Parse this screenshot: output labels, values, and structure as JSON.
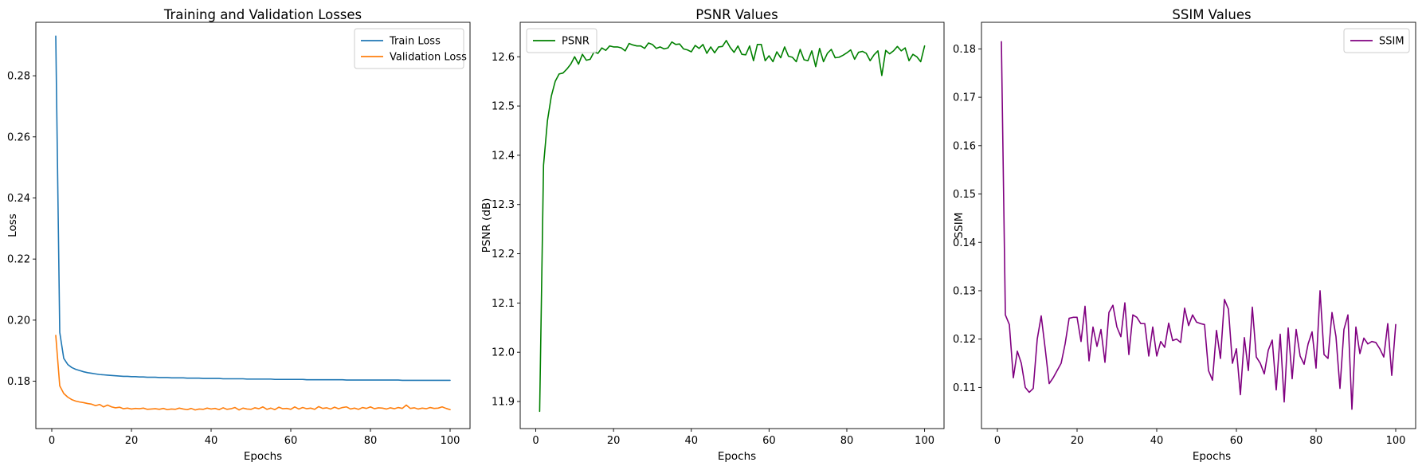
{
  "figure": {
    "background": "#ffffff"
  },
  "chart_data": [
    {
      "type": "line",
      "title": "Training and Validation Losses",
      "xlabel": "Epochs",
      "ylabel": "Loss",
      "xlim": [
        -4,
        105
      ],
      "ylim": [
        0.1645,
        0.2975
      ],
      "xticks": [
        0,
        20,
        40,
        60,
        80,
        100
      ],
      "yticks": [
        0.18,
        0.2,
        0.22,
        0.24,
        0.26,
        0.28
      ],
      "ytick_labels": [
        "0.18",
        "0.20",
        "0.22",
        "0.24",
        "0.26",
        "0.28"
      ],
      "grid": false,
      "legend_position": "upper right",
      "series": [
        {
          "name": "Train Loss",
          "color": "#1f77b4",
          "x_start": 1,
          "x_step": 1,
          "y": [
            0.293,
            0.196,
            0.1875,
            0.1855,
            0.1845,
            0.1839,
            0.1835,
            0.1831,
            0.1828,
            0.1826,
            0.1824,
            0.1822,
            0.1821,
            0.182,
            0.1819,
            0.1818,
            0.1817,
            0.1816,
            0.1816,
            0.1815,
            0.1815,
            0.1814,
            0.1814,
            0.1813,
            0.1813,
            0.1813,
            0.1812,
            0.1812,
            0.1812,
            0.1811,
            0.1811,
            0.1811,
            0.1811,
            0.181,
            0.181,
            0.181,
            0.181,
            0.1809,
            0.1809,
            0.1809,
            0.1809,
            0.1809,
            0.1808,
            0.1808,
            0.1808,
            0.1808,
            0.1808,
            0.1808,
            0.1807,
            0.1807,
            0.1807,
            0.1807,
            0.1807,
            0.1807,
            0.1807,
            0.1806,
            0.1806,
            0.1806,
            0.1806,
            0.1806,
            0.1806,
            0.1806,
            0.1806,
            0.1805,
            0.1805,
            0.1805,
            0.1805,
            0.1805,
            0.1805,
            0.1805,
            0.1805,
            0.1805,
            0.1805,
            0.1804,
            0.1804,
            0.1804,
            0.1804,
            0.1804,
            0.1804,
            0.1804,
            0.1804,
            0.1804,
            0.1804,
            0.1804,
            0.1804,
            0.1804,
            0.1804,
            0.1803,
            0.1803,
            0.1803,
            0.1803,
            0.1803,
            0.1803,
            0.1803,
            0.1803,
            0.1803,
            0.1803,
            0.1803,
            0.1803,
            0.1803
          ]
        },
        {
          "name": "Validation Loss",
          "color": "#ff7f0e",
          "x_start": 1,
          "x_step": 1,
          "y": [
            0.195,
            0.1785,
            0.176,
            0.1748,
            0.174,
            0.1735,
            0.1732,
            0.173,
            0.1727,
            0.1725,
            0.172,
            0.1724,
            0.1716,
            0.1722,
            0.1716,
            0.1713,
            0.1715,
            0.171,
            0.1712,
            0.1709,
            0.1711,
            0.171,
            0.1712,
            0.1708,
            0.1709,
            0.171,
            0.1708,
            0.1711,
            0.1707,
            0.1709,
            0.1708,
            0.1712,
            0.1709,
            0.1707,
            0.1711,
            0.1706,
            0.1709,
            0.1708,
            0.1712,
            0.1709,
            0.1711,
            0.1707,
            0.1713,
            0.1708,
            0.171,
            0.1714,
            0.1706,
            0.1712,
            0.1709,
            0.1708,
            0.1713,
            0.171,
            0.1716,
            0.1708,
            0.1712,
            0.1707,
            0.1715,
            0.171,
            0.1711,
            0.1708,
            0.1716,
            0.1709,
            0.1714,
            0.171,
            0.1712,
            0.1708,
            0.1717,
            0.1711,
            0.1713,
            0.1709,
            0.1715,
            0.171,
            0.1714,
            0.1716,
            0.1709,
            0.1712,
            0.1708,
            0.1714,
            0.1711,
            0.1716,
            0.171,
            0.1713,
            0.1712,
            0.1709,
            0.1713,
            0.171,
            0.1714,
            0.1711,
            0.1722,
            0.1711,
            0.1713,
            0.1709,
            0.1712,
            0.171,
            0.1714,
            0.1711,
            0.1712,
            0.1716,
            0.1711,
            0.1707
          ]
        }
      ]
    },
    {
      "type": "line",
      "title": "PSNR Values",
      "xlabel": "Epochs",
      "ylabel": "PSNR (dB)",
      "xlim": [
        -4,
        105
      ],
      "ylim": [
        11.845,
        12.67
      ],
      "xticks": [
        0,
        20,
        40,
        60,
        80,
        100
      ],
      "yticks": [
        11.9,
        12.0,
        12.1,
        12.2,
        12.3,
        12.4,
        12.5,
        12.6
      ],
      "ytick_labels": [
        "11.9",
        "12.0",
        "12.1",
        "12.2",
        "12.3",
        "12.4",
        "12.5",
        "12.6"
      ],
      "grid": false,
      "legend_position": "upper left",
      "series": [
        {
          "name": "PSNR",
          "color": "#008000",
          "x_start": 1,
          "x_step": 1,
          "y": [
            11.88,
            12.38,
            12.47,
            12.52,
            12.55,
            12.565,
            12.567,
            12.575,
            12.585,
            12.6,
            12.585,
            12.605,
            12.593,
            12.595,
            12.61,
            12.607,
            12.618,
            12.613,
            12.622,
            12.62,
            12.62,
            12.618,
            12.612,
            12.627,
            12.624,
            12.622,
            12.622,
            12.617,
            12.628,
            12.625,
            12.617,
            12.62,
            12.616,
            12.618,
            12.63,
            12.625,
            12.626,
            12.616,
            12.614,
            12.61,
            12.623,
            12.617,
            12.625,
            12.607,
            12.62,
            12.608,
            12.62,
            12.621,
            12.633,
            12.619,
            12.609,
            12.622,
            12.605,
            12.604,
            12.622,
            12.592,
            12.625,
            12.625,
            12.592,
            12.602,
            12.59,
            12.61,
            12.598,
            12.62,
            12.601,
            12.599,
            12.59,
            12.615,
            12.594,
            12.592,
            12.612,
            12.58,
            12.617,
            12.59,
            12.607,
            12.615,
            12.598,
            12.599,
            12.603,
            12.608,
            12.614,
            12.595,
            12.609,
            12.611,
            12.607,
            12.592,
            12.604,
            12.612,
            12.562,
            12.613,
            12.606,
            12.612,
            12.621,
            12.612,
            12.618,
            12.592,
            12.605,
            12.6,
            12.59,
            12.622
          ]
        }
      ]
    },
    {
      "type": "line",
      "title": "SSIM Values",
      "xlabel": "Epochs",
      "ylabel": "SSIM",
      "xlim": [
        -4,
        105
      ],
      "ylim": [
        0.1015,
        0.1855
      ],
      "xticks": [
        0,
        20,
        40,
        60,
        80,
        100
      ],
      "yticks": [
        0.11,
        0.12,
        0.13,
        0.14,
        0.15,
        0.16,
        0.17,
        0.18
      ],
      "ytick_labels": [
        "0.11",
        "0.12",
        "0.13",
        "0.14",
        "0.15",
        "0.16",
        "0.17",
        "0.18"
      ],
      "grid": false,
      "legend_position": "upper right",
      "series": [
        {
          "name": "SSIM",
          "color": "#800080",
          "x_start": 1,
          "x_step": 1,
          "y": [
            0.1815,
            0.125,
            0.123,
            0.112,
            0.1175,
            0.115,
            0.11,
            0.109,
            0.1098,
            0.12,
            0.1248,
            0.118,
            0.1108,
            0.112,
            0.1135,
            0.115,
            0.119,
            0.1243,
            0.1245,
            0.1245,
            0.1195,
            0.1268,
            0.1155,
            0.1225,
            0.1185,
            0.122,
            0.1152,
            0.1255,
            0.127,
            0.1225,
            0.1205,
            0.1275,
            0.1168,
            0.125,
            0.1245,
            0.1232,
            0.1232,
            0.1165,
            0.1225,
            0.1165,
            0.1195,
            0.1183,
            0.1233,
            0.1197,
            0.12,
            0.1193,
            0.1264,
            0.1228,
            0.125,
            0.1235,
            0.1232,
            0.123,
            0.1135,
            0.1115,
            0.1218,
            0.116,
            0.1282,
            0.1262,
            0.115,
            0.118,
            0.1085,
            0.1203,
            0.1135,
            0.1266,
            0.1163,
            0.115,
            0.1128,
            0.1177,
            0.1198,
            0.1095,
            0.121,
            0.107,
            0.1223,
            0.1118,
            0.122,
            0.1165,
            0.1148,
            0.119,
            0.1215,
            0.114,
            0.13,
            0.1168,
            0.116,
            0.1255,
            0.1205,
            0.1098,
            0.122,
            0.125,
            0.1055,
            0.1225,
            0.117,
            0.1202,
            0.119,
            0.1195,
            0.1193,
            0.118,
            0.1163,
            0.1232,
            0.1125,
            0.123
          ]
        }
      ]
    }
  ]
}
